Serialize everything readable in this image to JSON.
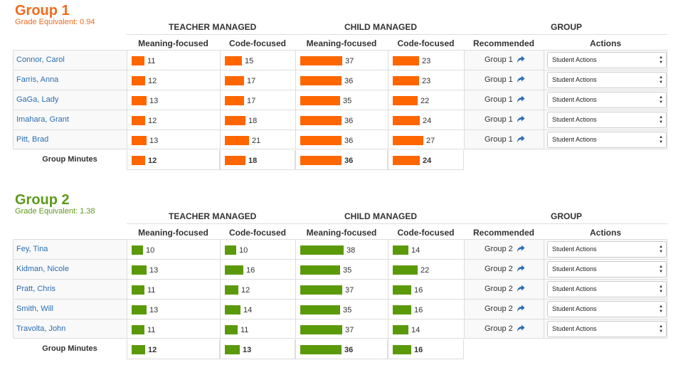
{
  "headers": {
    "teacher_managed": "TEACHER MANAGED",
    "child_managed": "CHILD MANAGED",
    "group": "GROUP",
    "meaning_focused": "Meaning-focused",
    "code_focused": "Code-focused",
    "recommended": "Recommended",
    "actions": "Actions",
    "group_minutes": "Group Minutes"
  },
  "colors": {
    "group1": "#f26b1d",
    "group2": "#5c9a1b",
    "bar_group1": "#ff6600",
    "bar_group2": "#5a9a0a",
    "link": "#2a6eb3"
  },
  "groups": [
    {
      "title": "Group 1",
      "grade_equivalent": "Grade Equivalent: 0.94",
      "students": [
        {
          "name": "Connor, Carol",
          "tm": 11,
          "tc": 15,
          "cm": 37,
          "cc": 23,
          "recommended": "Group 1",
          "action": "Student Actions"
        },
        {
          "name": "Farris, Anna",
          "tm": 12,
          "tc": 17,
          "cm": 36,
          "cc": 23,
          "recommended": "Group 1",
          "action": "Student Actions"
        },
        {
          "name": "GaGa, Lady",
          "tm": 13,
          "tc": 17,
          "cm": 35,
          "cc": 22,
          "recommended": "Group 1",
          "action": "Student Actions"
        },
        {
          "name": "Imahara, Grant",
          "tm": 12,
          "tc": 18,
          "cm": 36,
          "cc": 24,
          "recommended": "Group 1",
          "action": "Student Actions"
        },
        {
          "name": "Pitt, Brad",
          "tm": 13,
          "tc": 21,
          "cm": 36,
          "cc": 27,
          "recommended": "Group 1",
          "action": "Student Actions"
        }
      ],
      "totals": {
        "tm": 12,
        "tc": 18,
        "cm": 36,
        "cc": 24
      }
    },
    {
      "title": "Group 2",
      "grade_equivalent": "Grade Equivalent: 1.38",
      "students": [
        {
          "name": "Fey, Tina",
          "tm": 10,
          "tc": 10,
          "cm": 38,
          "cc": 14,
          "recommended": "Group 2",
          "action": "Student Actions"
        },
        {
          "name": "Kidman, Nicole",
          "tm": 13,
          "tc": 16,
          "cm": 35,
          "cc": 22,
          "recommended": "Group 2",
          "action": "Student Actions"
        },
        {
          "name": "Pratt, Chris",
          "tm": 11,
          "tc": 12,
          "cm": 37,
          "cc": 16,
          "recommended": "Group 2",
          "action": "Student Actions"
        },
        {
          "name": "Smith, Will",
          "tm": 13,
          "tc": 14,
          "cm": 35,
          "cc": 16,
          "recommended": "Group 2",
          "action": "Student Actions"
        },
        {
          "name": "Travolta, John",
          "tm": 11,
          "tc": 11,
          "cm": 37,
          "cc": 14,
          "recommended": "Group 2",
          "action": "Student Actions"
        }
      ],
      "totals": {
        "tm": 12,
        "tc": 13,
        "cm": 36,
        "cc": 16
      }
    }
  ]
}
